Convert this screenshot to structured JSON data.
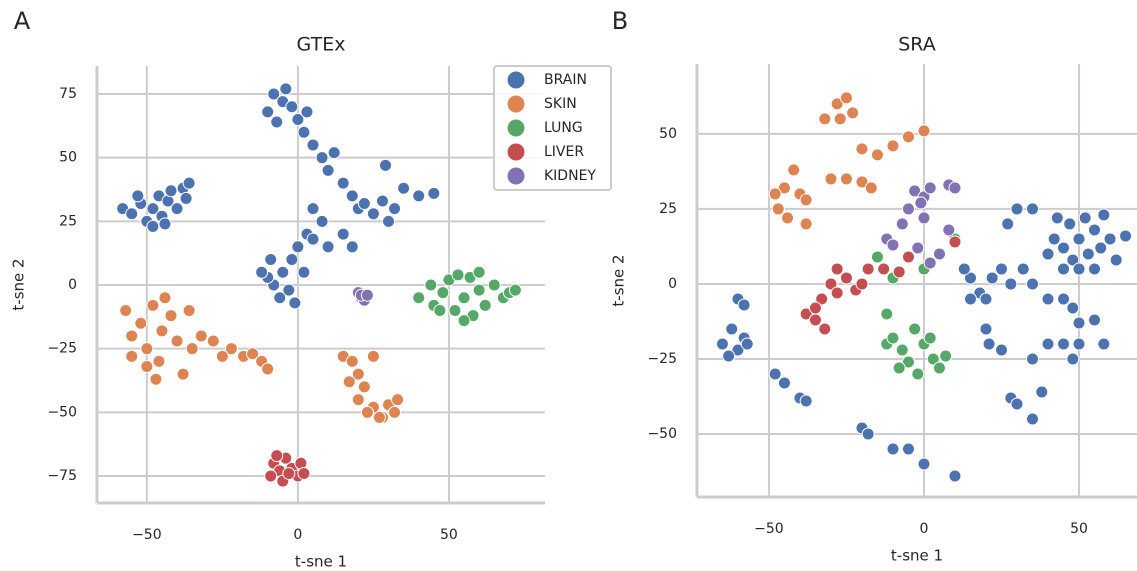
{
  "chart_data": [
    {
      "type": "scatter",
      "panel_label": "A",
      "title": "GTEx",
      "xlabel": "t-sne 1",
      "ylabel": "t-sne 2",
      "xlim": [
        -66.5,
        81.8
      ],
      "ylim": [
        -85.6,
        86
      ],
      "xticks": [
        {
          "value": -50,
          "label": "−50"
        },
        0,
        50
      ],
      "yticks": [
        {
          "value": -75,
          "label": "−75"
        },
        {
          "value": -50,
          "label": "−50"
        },
        {
          "value": -25,
          "label": "−25"
        },
        0,
        25,
        50,
        75
      ],
      "grid": true,
      "legend": "upper right",
      "series": [
        {
          "name": "BRAIN",
          "color": "#4c72b0",
          "x": [
            -58,
            -55,
            -52,
            -50,
            -48,
            -46,
            -45,
            -43,
            -42,
            -40,
            -38,
            -37,
            -48,
            -53,
            -44,
            -36,
            -8,
            -5,
            -10,
            -2,
            0,
            -7,
            2,
            -4,
            3,
            5,
            8,
            12,
            10,
            15,
            18,
            20,
            25,
            28,
            32,
            35,
            40,
            45,
            22,
            30,
            29,
            5,
            8,
            3,
            0,
            -2,
            -5,
            -8,
            -10,
            -6,
            -3,
            -9,
            2,
            5,
            10,
            -1,
            -12,
            15,
            18
          ],
          "y": [
            30,
            28,
            32,
            25,
            30,
            35,
            27,
            33,
            37,
            30,
            38,
            34,
            23,
            35,
            24,
            40,
            75,
            72,
            68,
            70,
            65,
            64,
            60,
            77,
            68,
            55,
            50,
            52,
            45,
            40,
            35,
            30,
            28,
            33,
            30,
            38,
            35,
            36,
            32,
            25,
            47,
            30,
            25,
            20,
            15,
            10,
            5,
            0,
            3,
            -5,
            -2,
            10,
            5,
            18,
            15,
            -7,
            5,
            20,
            15
          ]
        },
        {
          "name": "SKIN",
          "color": "#dd8452",
          "x": [
            -57,
            -55,
            -52,
            -50,
            -48,
            -46,
            -45,
            -42,
            -40,
            -38,
            -44,
            -50,
            -36,
            -35,
            -32,
            -28,
            -25,
            -22,
            -18,
            -15,
            -12,
            -10,
            -55,
            -47,
            15,
            18,
            20,
            17,
            22,
            20,
            25,
            23,
            28,
            30,
            32,
            33,
            25,
            27
          ],
          "y": [
            -10,
            -20,
            -15,
            -25,
            -8,
            -30,
            -18,
            -12,
            -22,
            -35,
            -5,
            -32,
            -10,
            -25,
            -20,
            -22,
            -28,
            -25,
            -28,
            -27,
            -30,
            -33,
            -28,
            -37,
            -28,
            -30,
            -35,
            -38,
            -40,
            -45,
            -48,
            -50,
            -52,
            -47,
            -50,
            -45,
            -28,
            -52
          ]
        },
        {
          "name": "LUNG",
          "color": "#55a868",
          "x": [
            40,
            44,
            45,
            48,
            50,
            52,
            55,
            57,
            58,
            60,
            62,
            65,
            68,
            70,
            72,
            55,
            47,
            60,
            53
          ],
          "y": [
            -5,
            0,
            -8,
            -3,
            2,
            -10,
            -5,
            3,
            -12,
            -2,
            -8,
            0,
            -5,
            -3,
            -2,
            -14,
            -10,
            5,
            4
          ]
        },
        {
          "name": "LIVER",
          "color": "#c44e52",
          "x": [
            -8,
            -6,
            -4,
            -2,
            0,
            -9,
            -5,
            1,
            -3,
            -7,
            2
          ],
          "y": [
            -70,
            -73,
            -68,
            -72,
            -75,
            -75,
            -77,
            -70,
            -74,
            -67,
            -74
          ]
        },
        {
          "name": "KIDNEY",
          "color": "#8172b3",
          "x": [
            20,
            21,
            22,
            21,
            23
          ],
          "y": [
            -3,
            -5,
            -6,
            -4,
            -4
          ]
        }
      ]
    },
    {
      "type": "scatter",
      "panel_label": "B",
      "title": "SRA",
      "xlabel": "t-sne 1",
      "ylabel": "t-sne 2",
      "xlim": [
        -73.2,
        68.7
      ],
      "ylim": [
        -71,
        73.3
      ],
      "xticks": [
        {
          "value": -50,
          "label": "−50"
        },
        0,
        50
      ],
      "yticks": [
        {
          "value": -50,
          "label": "−50"
        },
        {
          "value": -25,
          "label": "−25"
        },
        0,
        25,
        50
      ],
      "grid": true,
      "series": [
        {
          "color": "#4c72b0",
          "x": [
            40,
            42,
            45,
            47,
            48,
            50,
            52,
            53,
            55,
            57,
            58,
            60,
            62,
            65,
            45,
            50,
            55,
            43,
            30,
            35,
            27,
            25,
            28,
            32,
            35,
            40,
            45,
            48,
            15,
            18,
            13,
            20,
            22,
            15,
            -62,
            -65,
            -60,
            -58,
            -63,
            -57,
            -60,
            -58,
            -48,
            -45,
            -40,
            -38,
            -20,
            -18,
            -10,
            -5,
            0,
            10,
            20,
            21,
            25,
            28,
            30,
            35,
            38,
            45,
            48,
            50,
            55,
            58,
            50,
            40,
            35
          ],
          "y": [
            10,
            15,
            12,
            20,
            8,
            15,
            22,
            10,
            18,
            12,
            23,
            15,
            8,
            16,
            5,
            5,
            5,
            22,
            25,
            25,
            20,
            5,
            0,
            5,
            0,
            -5,
            -5,
            -8,
            2,
            -3,
            5,
            -5,
            2,
            -5,
            -15,
            -20,
            -22,
            -18,
            -24,
            -20,
            -5,
            -7,
            -30,
            -33,
            -38,
            -39,
            -48,
            -50,
            -55,
            -55,
            -60,
            -64,
            -15,
            -20,
            -22,
            -38,
            -40,
            -45,
            -36,
            -20,
            -25,
            -13,
            -12,
            -20,
            -20,
            -20,
            -25
          ]
        },
        {
          "color": "#dd8452",
          "x": [
            -28,
            -25,
            -27,
            -23,
            -32,
            -20,
            -15,
            -10,
            -5,
            0,
            -42,
            -45,
            -47,
            -44,
            -40,
            -38,
            -48,
            -25,
            -20,
            -17,
            -30,
            -38
          ],
          "y": [
            60,
            62,
            55,
            57,
            55,
            45,
            43,
            46,
            49,
            51,
            38,
            32,
            25,
            22,
            30,
            28,
            30,
            35,
            34,
            32,
            35,
            20
          ]
        },
        {
          "color": "#55a868",
          "x": [
            -12,
            -10,
            -7,
            -5,
            -3,
            0,
            3,
            5,
            7,
            -8,
            -2,
            2,
            -12,
            -5,
            0,
            10,
            -15,
            -10
          ],
          "y": [
            -20,
            -18,
            -22,
            -26,
            -15,
            -20,
            -25,
            -28,
            -24,
            -28,
            -30,
            -18,
            -10,
            25,
            5,
            15,
            9,
            2
          ]
        },
        {
          "color": "#c44e52",
          "x": [
            -38,
            -35,
            -33,
            -30,
            -28,
            -25,
            -22,
            -20,
            -28,
            -32,
            -18,
            -13,
            -8,
            -5,
            10,
            -35
          ],
          "y": [
            -10,
            -12,
            -5,
            0,
            -3,
            2,
            -2,
            0,
            5,
            -15,
            5,
            5,
            4,
            9,
            14,
            -8
          ]
        },
        {
          "color": "#8172b3",
          "x": [
            -3,
            0,
            2,
            8,
            10,
            -5,
            0,
            -7,
            -12,
            -2,
            5,
            8,
            2,
            -10,
            -1
          ],
          "y": [
            31,
            29,
            32,
            33,
            32,
            25,
            22,
            20,
            15,
            12,
            10,
            18,
            7,
            13,
            27
          ]
        }
      ]
    }
  ]
}
